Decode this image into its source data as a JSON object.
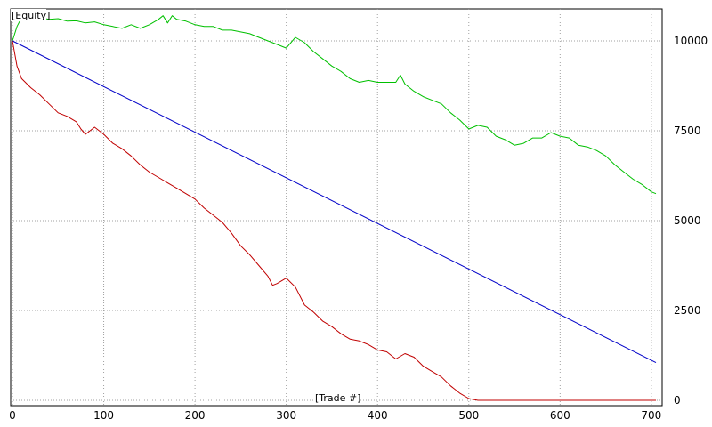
{
  "chart_data": {
    "type": "line",
    "title": "[Equity]",
    "xlabel": "[Trade #]",
    "ylabel": "",
    "xlim": [
      0,
      705
    ],
    "ylim": [
      0,
      10000
    ],
    "grid": true,
    "y_axis_side": "right",
    "x_ticks": [
      0,
      100,
      200,
      300,
      400,
      500,
      600,
      700
    ],
    "y_ticks": [
      0,
      2500,
      5000,
      7500,
      10000
    ],
    "series": [
      {
        "color": "#00c000",
        "x": [
          0,
          5,
          10,
          20,
          30,
          40,
          50,
          60,
          70,
          80,
          90,
          100,
          110,
          120,
          130,
          140,
          150,
          160,
          165,
          170,
          175,
          180,
          190,
          200,
          210,
          220,
          230,
          240,
          250,
          260,
          270,
          280,
          290,
          300,
          310,
          320,
          330,
          340,
          350,
          360,
          370,
          380,
          390,
          400,
          410,
          420,
          425,
          430,
          440,
          450,
          460,
          470,
          480,
          490,
          500,
          510,
          520,
          530,
          540,
          550,
          560,
          570,
          580,
          590,
          600,
          610,
          620,
          630,
          640,
          650,
          660,
          670,
          680,
          690,
          700,
          705
        ],
        "values": [
          10000,
          10400,
          10650,
          10700,
          10650,
          10600,
          10620,
          10550,
          10560,
          10500,
          10530,
          10450,
          10400,
          10350,
          10450,
          10350,
          10450,
          10600,
          10700,
          10500,
          10700,
          10600,
          10550,
          10450,
          10400,
          10400,
          10300,
          10300,
          10250,
          10200,
          10100,
          10000,
          9900,
          9800,
          10100,
          9950,
          9700,
          9500,
          9300,
          9150,
          8950,
          8850,
          8900,
          8850,
          8850,
          8850,
          9050,
          8800,
          8600,
          8450,
          8350,
          8250,
          8000,
          7800,
          7550,
          7650,
          7600,
          7350,
          7250,
          7100,
          7150,
          7300,
          7300,
          7450,
          7350,
          7300,
          7100,
          7050,
          6950,
          6800,
          6550,
          6350,
          6150,
          6000,
          5800,
          5750
        ]
      },
      {
        "color": "#0000c8",
        "x": [
          0,
          705
        ],
        "values": [
          10000,
          1050
        ]
      },
      {
        "color": "#c00000",
        "x": [
          0,
          5,
          10,
          20,
          30,
          40,
          50,
          60,
          70,
          75,
          80,
          90,
          100,
          110,
          120,
          130,
          140,
          150,
          160,
          170,
          180,
          190,
          200,
          210,
          220,
          230,
          240,
          250,
          260,
          270,
          280,
          285,
          290,
          300,
          310,
          320,
          330,
          340,
          350,
          360,
          370,
          380,
          390,
          400,
          410,
          420,
          430,
          440,
          450,
          460,
          470,
          480,
          490,
          500,
          510,
          600,
          705
        ],
        "values": [
          10000,
          9300,
          8950,
          8700,
          8500,
          8250,
          8000,
          7900,
          7750,
          7550,
          7400,
          7600,
          7400,
          7150,
          7000,
          6800,
          6550,
          6350,
          6200,
          6050,
          5900,
          5750,
          5600,
          5350,
          5150,
          4950,
          4650,
          4300,
          4050,
          3750,
          3450,
          3200,
          3250,
          3400,
          3150,
          2650,
          2450,
          2200,
          2050,
          1850,
          1700,
          1650,
          1550,
          1400,
          1350,
          1150,
          1300,
          1200,
          950,
          800,
          650,
          400,
          200,
          50,
          0,
          0,
          0
        ]
      }
    ]
  }
}
